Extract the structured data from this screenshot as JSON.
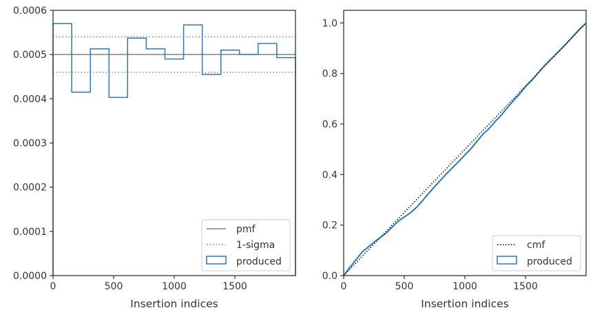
{
  "colors": {
    "hist": "#2a7ab5",
    "pmf": "#808080",
    "sigma": "#808080",
    "cmf": "#000000",
    "frame": "#333333"
  },
  "chart_data": [
    {
      "type": "histogram",
      "xlabel": "Insertion indices",
      "ylabel": "",
      "xlim": [
        0,
        2000
      ],
      "ylim": [
        0,
        0.0006
      ],
      "xticks": [
        "0",
        "500",
        "1000",
        "1500"
      ],
      "yticks": [
        "0.0000",
        "0.0001",
        "0.0002",
        "0.0003",
        "0.0004",
        "0.0005",
        "0.0006"
      ],
      "bin_edges": [
        0,
        154,
        308,
        462,
        615,
        769,
        923,
        1077,
        1231,
        1385,
        1538,
        1692,
        1846,
        2000
      ],
      "values": [
        0.00057,
        0.000415,
        0.000513,
        0.000403,
        0.000537,
        0.000513,
        0.00049,
        0.000567,
        0.000455,
        0.00051,
        0.0005,
        0.000525,
        0.000493
      ],
      "pmf": 0.0005,
      "sigma_lines": [
        0.00054,
        0.00046
      ],
      "legend": {
        "position": "lower right",
        "entries": [
          {
            "label": "pmf",
            "style": "solid-line"
          },
          {
            "label": "1-sigma",
            "style": "dotted-line"
          },
          {
            "label": "produced",
            "style": "box"
          }
        ]
      }
    },
    {
      "type": "line",
      "xlabel": "Insertion indices",
      "ylabel": "",
      "xlim": [
        0,
        2000
      ],
      "ylim": [
        0,
        1.05
      ],
      "xticks": [
        "0",
        "500",
        "1000",
        "1500"
      ],
      "yticks": [
        "0.0",
        "0.2",
        "0.4",
        "0.6",
        "0.8",
        "1.0"
      ],
      "cmf": {
        "x": [
          0,
          2000
        ],
        "y": [
          0,
          1.0
        ]
      },
      "produced": {
        "x": [
          0,
          50,
          100,
          150,
          200,
          250,
          300,
          350,
          400,
          450,
          500,
          550,
          600,
          650,
          700,
          750,
          800,
          850,
          900,
          950,
          1000,
          1050,
          1100,
          1150,
          1200,
          1250,
          1300,
          1350,
          1400,
          1450,
          1500,
          1550,
          1600,
          1650,
          1700,
          1750,
          1800,
          1850,
          1900,
          1950,
          2000
        ],
        "y": [
          0,
          0.032,
          0.062,
          0.092,
          0.112,
          0.132,
          0.15,
          0.168,
          0.192,
          0.215,
          0.232,
          0.248,
          0.27,
          0.296,
          0.325,
          0.352,
          0.378,
          0.404,
          0.428,
          0.452,
          0.478,
          0.502,
          0.532,
          0.56,
          0.582,
          0.61,
          0.635,
          0.664,
          0.692,
          0.718,
          0.748,
          0.772,
          0.8,
          0.828,
          0.852,
          0.876,
          0.9,
          0.925,
          0.952,
          0.978,
          1.0
        ]
      },
      "legend": {
        "position": "lower right",
        "entries": [
          {
            "label": "cmf",
            "style": "dotted-line"
          },
          {
            "label": "produced",
            "style": "box"
          }
        ]
      }
    }
  ]
}
